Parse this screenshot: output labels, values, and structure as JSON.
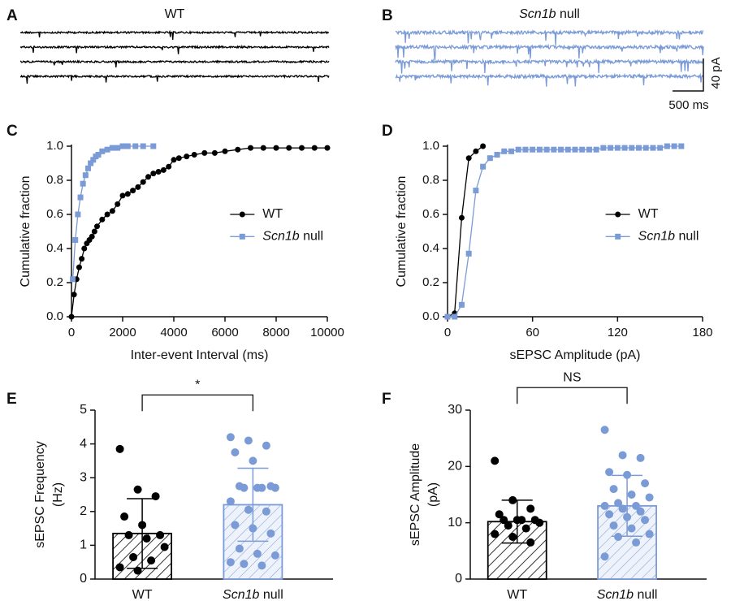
{
  "chart_data": [
    {
      "type": "trace",
      "panel": "A",
      "title": "WT",
      "color": "#000000"
    },
    {
      "type": "trace",
      "panel": "B",
      "title": "Scn1b null",
      "color": "#7b9bd7",
      "scale_labels": [
        "40 pA",
        "500 ms"
      ]
    },
    {
      "type": "line",
      "panel": "C",
      "xlabel": "Inter-event Interval (ms)",
      "ylabel": "Cumulative fraction",
      "xlim": [
        0,
        10000
      ],
      "xticks": [
        0,
        2000,
        4000,
        6000,
        8000,
        10000
      ],
      "ylim": [
        0,
        1
      ],
      "yticks": [
        {
          "value": 0,
          "label": "0.0"
        },
        0.2,
        0.4,
        0.6,
        0.8,
        {
          "value": 1,
          "label": "1.0"
        }
      ],
      "legend": "right",
      "series": [
        {
          "name": "WT",
          "color": "#000000",
          "marker": "circle",
          "x": [
            0,
            100,
            200,
            300,
            400,
            500,
            600,
            700,
            800,
            900,
            1000,
            1200,
            1400,
            1600,
            1800,
            2000,
            2200,
            2400,
            2600,
            2800,
            3000,
            3200,
            3400,
            3600,
            3800,
            4000,
            4200,
            4500,
            4800,
            5200,
            5600,
            6000,
            6500,
            7000,
            7500,
            8000,
            8500,
            9000,
            9500,
            10000
          ],
          "values": [
            0,
            0.13,
            0.22,
            0.29,
            0.34,
            0.4,
            0.43,
            0.45,
            0.47,
            0.5,
            0.53,
            0.57,
            0.6,
            0.62,
            0.66,
            0.71,
            0.72,
            0.74,
            0.76,
            0.79,
            0.82,
            0.84,
            0.85,
            0.86,
            0.88,
            0.92,
            0.93,
            0.94,
            0.95,
            0.96,
            0.96,
            0.97,
            0.98,
            0.99,
            0.99,
            0.99,
            0.99,
            0.99,
            0.99,
            0.99
          ]
        },
        {
          "name": "Scn1b null",
          "color": "#7b9bd7",
          "marker": "square",
          "x": [
            50,
            150,
            250,
            350,
            450,
            550,
            650,
            750,
            850,
            950,
            1050,
            1200,
            1400,
            1600,
            1800,
            2000,
            2200,
            2500,
            2800,
            3200
          ],
          "values": [
            0.22,
            0.45,
            0.6,
            0.7,
            0.78,
            0.83,
            0.87,
            0.9,
            0.92,
            0.94,
            0.95,
            0.97,
            0.98,
            0.99,
            0.99,
            1,
            1,
            1,
            1,
            1
          ]
        }
      ]
    },
    {
      "type": "line",
      "panel": "D",
      "xlabel": "sEPSC Amplitude (pA)",
      "ylabel": "Cumulative fraction",
      "xlim": [
        0,
        180
      ],
      "xticks": [
        0,
        60,
        120,
        180
      ],
      "ylim": [
        0,
        1
      ],
      "yticks": [
        {
          "value": 0,
          "label": "0.0"
        },
        0.2,
        0.4,
        0.6,
        0.8,
        {
          "value": 1,
          "label": "1.0"
        }
      ],
      "legend": "right",
      "series": [
        {
          "name": "WT",
          "color": "#000000",
          "marker": "circle",
          "x": [
            0,
            5,
            10,
            15,
            20,
            25
          ],
          "values": [
            0,
            0.02,
            0.58,
            0.93,
            0.97,
            1
          ]
        },
        {
          "name": "Scn1b null",
          "color": "#7b9bd7",
          "marker": "square",
          "x": [
            0,
            5,
            10,
            15,
            20,
            25,
            30,
            35,
            40,
            45,
            50,
            55,
            60,
            65,
            70,
            75,
            80,
            85,
            90,
            95,
            100,
            105,
            110,
            115,
            120,
            125,
            130,
            135,
            140,
            145,
            150,
            155,
            160,
            165
          ],
          "values": [
            0,
            0,
            0.07,
            0.37,
            0.74,
            0.88,
            0.93,
            0.95,
            0.97,
            0.97,
            0.98,
            0.98,
            0.98,
            0.98,
            0.98,
            0.98,
            0.98,
            0.98,
            0.98,
            0.98,
            0.98,
            0.98,
            0.99,
            0.99,
            0.99,
            0.99,
            0.99,
            0.99,
            0.99,
            0.99,
            0.99,
            1,
            1,
            1
          ]
        }
      ]
    },
    {
      "type": "bar",
      "panel": "E",
      "ylabel": [
        "sEPSC Frequency",
        "(Hz)"
      ],
      "ylim": [
        0,
        5
      ],
      "yticks": [
        0,
        1,
        2,
        3,
        4,
        5
      ],
      "categories": [
        "WT",
        "Scn1b null"
      ],
      "colors": [
        "#000000",
        "#7b9bd7"
      ],
      "values": [
        1.35,
        2.2
      ],
      "errors": [
        1.03,
        1.08
      ],
      "points": [
        [
          3.85,
          2.65,
          2.45,
          1.85,
          1.6,
          1.3,
          1.3,
          1.2,
          0.95,
          0.65,
          0.55,
          0.35,
          0.25
        ],
        [
          4.2,
          4.1,
          3.95,
          3.75,
          3.5,
          2.75,
          2.75,
          2.7,
          2.7,
          2.7,
          2.7,
          2.3,
          2.05,
          2.0,
          1.6,
          1.5,
          1.35,
          0.9,
          0.75,
          0.7,
          0.45,
          0.4,
          0.5
        ]
      ],
      "annotation": "*"
    },
    {
      "type": "bar",
      "panel": "F",
      "ylabel": [
        "sEPSC Amplitude",
        "(pA)"
      ],
      "ylim": [
        0,
        30
      ],
      "yticks": [
        0,
        10,
        20,
        30
      ],
      "categories": [
        "WT",
        "Scn1b null"
      ],
      "colors": [
        "#000000",
        "#7b9bd7"
      ],
      "values": [
        10.2,
        13
      ],
      "errors": [
        3.8,
        5.4
      ],
      "points": [
        [
          21,
          14,
          12.5,
          11.5,
          10.5,
          10.5,
          10.5,
          10.5,
          10,
          9.5,
          9,
          8,
          7.5,
          6.5
        ],
        [
          26.5,
          22,
          21.5,
          19,
          18.5,
          17,
          16,
          15,
          14.5,
          13.5,
          13,
          13,
          12.5,
          12,
          11.5,
          11,
          10.5,
          9.5,
          9,
          8,
          7.5,
          6.5,
          4
        ]
      ],
      "annotation": "NS"
    }
  ]
}
